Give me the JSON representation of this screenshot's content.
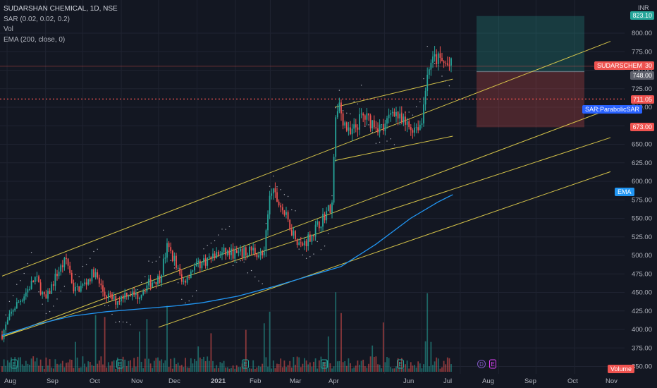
{
  "legend": {
    "title": "SUDARSHAN CHEMICAL, 1D, NSE",
    "sar": "SAR (0.02, 0.02, 0.2)",
    "vol": "Vol",
    "ema": "EMA (200, close, 0)"
  },
  "currency": "INR",
  "price_tags": {
    "top": "823.10",
    "last": "755.30",
    "entry": "748.00",
    "level": "711.05",
    "stop": "673.00"
  },
  "labels": {
    "symbol": "SUDARSCHEM",
    "sar": "SAR:ParabolicSAR",
    "ema": "EMA",
    "volume": "Volume"
  },
  "events": {
    "earnings": "E",
    "dividend": "D"
  },
  "colors": {
    "background": "#131722",
    "up": "#26a69a",
    "down": "#ef5350",
    "ema": "#2196f3",
    "channel": "#e8d44d",
    "sar_dots": "#aeb1bb"
  },
  "chart_data": {
    "type": "candlestick",
    "y_axis": {
      "range": [
        345,
        830
      ],
      "ticks": [
        350,
        375,
        400,
        425,
        450,
        475,
        500,
        525,
        550,
        575,
        600,
        625,
        650,
        675,
        700,
        725,
        750,
        775,
        800
      ]
    },
    "x_axis": {
      "ticks": [
        "Aug",
        "Sep",
        "Oct",
        "Nov",
        "Dec",
        "2021",
        "Feb",
        "Mar",
        "Apr",
        "Jun",
        "Jul",
        "Aug",
        "Sep",
        "Oct",
        "Nov"
      ]
    },
    "price_path": [
      [
        "2020-07-28",
        393
      ],
      [
        "2020-08-06",
        428
      ],
      [
        "2020-08-14",
        445
      ],
      [
        "2020-08-24",
        470
      ],
      [
        "2020-09-01",
        438
      ],
      [
        "2020-09-10",
        475
      ],
      [
        "2020-09-18",
        495
      ],
      [
        "2020-09-24",
        452
      ],
      [
        "2020-10-02",
        460
      ],
      [
        "2020-10-10",
        478
      ],
      [
        "2020-10-18",
        448
      ],
      [
        "2020-10-28",
        438
      ],
      [
        "2020-11-05",
        450
      ],
      [
        "2020-11-14",
        445
      ],
      [
        "2020-11-23",
        462
      ],
      [
        "2020-12-02",
        470
      ],
      [
        "2020-12-08",
        512
      ],
      [
        "2020-12-14",
        494
      ],
      [
        "2020-12-20",
        462
      ],
      [
        "2020-12-28",
        482
      ],
      [
        "2021-01-05",
        490
      ],
      [
        "2021-01-15",
        500
      ],
      [
        "2021-01-25",
        504
      ],
      [
        "2021-02-04",
        501
      ],
      [
        "2021-02-14",
        508
      ],
      [
        "2021-02-24",
        498
      ],
      [
        "2021-03-01",
        590
      ],
      [
        "2021-03-10",
        565
      ],
      [
        "2021-03-18",
        535
      ],
      [
        "2021-03-26",
        512
      ],
      [
        "2021-04-05",
        532
      ],
      [
        "2021-04-14",
        555
      ],
      [
        "2021-04-20",
        570
      ],
      [
        "2021-04-23",
        710
      ],
      [
        "2021-05-04",
        660
      ],
      [
        "2021-05-14",
        688
      ],
      [
        "2021-05-22",
        680
      ],
      [
        "2021-06-01",
        670
      ],
      [
        "2021-06-08",
        700
      ],
      [
        "2021-06-14",
        680
      ],
      [
        "2021-06-22",
        672
      ],
      [
        "2021-07-01",
        678
      ],
      [
        "2021-07-05",
        748
      ],
      [
        "2021-07-12",
        766
      ],
      [
        "2021-07-20",
        758
      ],
      [
        "2021-07-26",
        755
      ]
    ],
    "ema_path": [
      [
        "2020-07-28",
        392
      ],
      [
        "2020-08-25",
        407
      ],
      [
        "2020-09-22",
        418
      ],
      [
        "2020-10-20",
        424
      ],
      [
        "2020-11-18",
        428
      ],
      [
        "2020-12-16",
        432
      ],
      [
        "2021-01-05",
        436
      ],
      [
        "2021-02-03",
        445
      ],
      [
        "2021-03-04",
        458
      ],
      [
        "2021-04-01",
        472
      ],
      [
        "2021-04-27",
        485
      ],
      [
        "2021-05-25",
        515
      ],
      [
        "2021-06-22",
        550
      ],
      [
        "2021-07-14",
        572
      ],
      [
        "2021-07-26",
        582
      ]
    ],
    "channels": [
      {
        "from": [
          "2020-07-28",
          472
        ],
        "to": [
          "2021-11-30",
          789
        ]
      },
      {
        "from": [
          "2020-07-28",
          390
        ],
        "to": [
          "2021-11-30",
          698
        ]
      },
      {
        "from": [
          "2020-07-28",
          390
        ],
        "to": [
          "2021-11-30",
          659
        ]
      },
      {
        "from": [
          "2020-12-01",
          403
        ],
        "to": [
          "2021-11-30",
          613
        ]
      },
      {
        "from": [
          "2021-04-22",
          700
        ],
        "to": [
          "2021-07-26",
          738
        ]
      },
      {
        "from": [
          "2021-04-22",
          628
        ],
        "to": [
          "2021-07-26",
          661
        ]
      }
    ],
    "position_tool": {
      "entry": 748.0,
      "target": 823.1,
      "stop": 673.0
    },
    "horizontal_lines": [
      711.05,
      755.3
    ],
    "volume_series": "histogram (green/red per candle)"
  }
}
